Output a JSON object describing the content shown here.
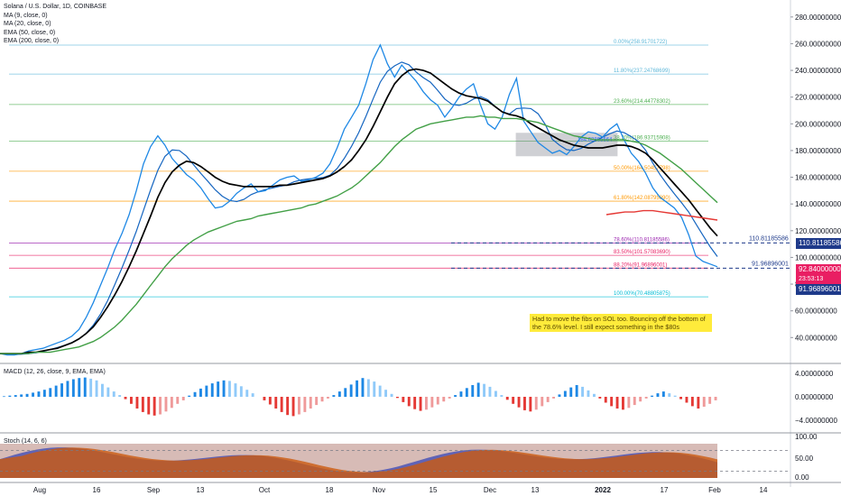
{
  "header": {
    "symbol_line": "Solana / U.S. Dollar, 1D, COINBASE",
    "indicators": [
      "MA (9, close, 0)",
      "MA (20, close, 0)",
      "EMA (50, close, 0)",
      "EMA (200, close, 0)"
    ]
  },
  "price_axis": {
    "ticks": [
      "280.00000000",
      "260.00000000",
      "240.00000000",
      "220.00000000",
      "200.00000000",
      "180.00000000",
      "160.00000000",
      "140.00000000",
      "120.00000000",
      "100.00000000",
      "80.00000000",
      "60.00000000",
      "40.00000000"
    ],
    "ylim": [
      24,
      290
    ]
  },
  "labels": {
    "level_high": "110.81185586",
    "level_low": "91.96896001",
    "last_price": "92.84000000",
    "countdown": "23:53:13"
  },
  "note": "Had to move the fibs on SOL too. Bouncing off the bottom of the 78.6% level. I still expect something in the $80s",
  "fib_levels": [
    {
      "label": "0.00%(258.91701722)",
      "value": 258.92,
      "color": "#5fb8d9"
    },
    {
      "label": "11.80%(237.24768699)",
      "value": 237.25,
      "color": "#5fb8d9"
    },
    {
      "label": "23.60%(214.44778302)",
      "value": 214.45,
      "color": "#4caf50"
    },
    {
      "label": "38.20%(186.93715908)",
      "value": 186.94,
      "color": "#4caf50"
    },
    {
      "label": "50.00%(164.50457798)",
      "value": 164.5,
      "color": "#ff9800"
    },
    {
      "label": "61.80%(142.08795690)",
      "value": 142.09,
      "color": "#ff9800"
    },
    {
      "label": "78.60%(110.81185586)",
      "value": 110.81,
      "color": "#9c27b0"
    },
    {
      "label": "83.50%(101.57083690)",
      "value": 101.57,
      "color": "#e91e63"
    },
    {
      "label": "88.20%(91.96896001)",
      "value": 91.97,
      "color": "#e91e63"
    },
    {
      "label": "100.00%(70.48805875)",
      "value": 70.49,
      "color": "#00bcd4"
    }
  ],
  "box_label": "184.62806664",
  "macd": {
    "title": "MACD (12, 26, close, 9, EMA, EMA)",
    "ticks": [
      "4.00000000",
      "0.00000000",
      "−4.00000000"
    ],
    "hist": [
      0.1,
      0.2,
      0.3,
      0.4,
      0.5,
      0.7,
      0.9,
      1.2,
      1.5,
      1.9,
      2.3,
      2.7,
      3.0,
      3.2,
      3.3,
      3.1,
      2.8,
      2.2,
      1.6,
      0.9,
      0.3,
      -0.4,
      -1.2,
      -2.0,
      -2.6,
      -3.0,
      -3.2,
      -3.0,
      -2.5,
      -1.9,
      -1.2,
      -0.6,
      0.2,
      0.8,
      1.4,
      1.9,
      2.3,
      2.6,
      2.8,
      2.7,
      2.3,
      1.8,
      1.2,
      0.6,
      0.0,
      -0.6,
      -1.3,
      -2.0,
      -2.6,
      -3.1,
      -3.3,
      -3.0,
      -2.6,
      -2.0,
      -1.4,
      -0.8,
      -0.3,
      0.3,
      0.9,
      1.5,
      2.1,
      2.8,
      3.2,
      3.0,
      2.6,
      1.9,
      1.2,
      0.5,
      -0.2,
      -0.9,
      -1.6,
      -2.1,
      -2.4,
      -2.2,
      -1.8,
      -1.3,
      -0.8,
      -0.3,
      0.3,
      0.9,
      1.5,
      2.0,
      2.4,
      2.2,
      1.7,
      1.0,
      0.3,
      -0.5,
      -1.2,
      -1.8,
      -2.3,
      -2.5,
      -2.2,
      -1.6,
      -0.9,
      -0.3,
      0.4,
      1.0,
      1.6,
      2.0,
      1.7,
      1.1,
      0.5,
      -0.3,
      -1.0,
      -1.6,
      -2.0,
      -2.2,
      -1.9,
      -1.4,
      -0.8,
      -0.3,
      0.2,
      0.6,
      0.9,
      0.6,
      0.2,
      -0.4,
      -1.0,
      -1.6,
      -2.0,
      -1.7,
      -1.2,
      -0.6
    ]
  },
  "stoch": {
    "title": "Stoch (14, 6, 6)",
    "ticks": [
      "100.00",
      "50.00",
      "0.00"
    ]
  },
  "time_axis": [
    "Aug",
    "16",
    "Sep",
    "13",
    "Oct",
    "18",
    "Nov",
    "15",
    "Dec",
    "13",
    "2022",
    "17",
    "Feb",
    "14"
  ],
  "chart_data": {
    "type": "line",
    "series": [
      {
        "values": [
          28,
          27,
          27,
          28,
          30,
          31,
          32,
          34,
          36,
          38,
          41,
          46,
          55,
          66,
          79,
          92,
          106,
          118,
          132,
          150,
          170,
          183,
          191,
          184,
          174,
          168,
          162,
          158,
          152,
          144,
          137,
          138,
          142,
          148,
          152,
          155,
          149,
          150,
          154,
          158,
          160,
          161,
          157,
          158,
          160,
          163,
          170,
          182,
          196,
          205,
          214,
          230,
          248,
          259,
          245,
          235,
          244,
          238,
          232,
          224,
          218,
          214,
          205,
          212,
          220,
          226,
          230,
          214,
          200,
          196,
          205,
          222,
          234,
          202,
          194,
          186,
          182,
          178,
          180,
          177,
          183,
          190,
          194,
          193,
          190,
          196,
          200,
          188,
          178,
          172,
          163,
          152,
          145,
          141,
          137,
          130,
          117,
          101,
          97,
          95,
          93
        ]
      },
      {
        "values": [
          28,
          28,
          28,
          28,
          29,
          29,
          30,
          31,
          32,
          34,
          36,
          39,
          43,
          48,
          55,
          63,
          72,
          82,
          93,
          105,
          118,
          131,
          145,
          156,
          164,
          169,
          172,
          171,
          168,
          164,
          160,
          157,
          155,
          154,
          153,
          153,
          153,
          153,
          153,
          154,
          154,
          155,
          156,
          157,
          158,
          159,
          161,
          164,
          168,
          173,
          180,
          188,
          198,
          209,
          220,
          230,
          236,
          240,
          241,
          240,
          238,
          234,
          230,
          226,
          223,
          221,
          220,
          219,
          217,
          213,
          209,
          207,
          206,
          204,
          200,
          197,
          194,
          191,
          188,
          186,
          184,
          183,
          182,
          182,
          182,
          183,
          184,
          184,
          183,
          181,
          178,
          173,
          167,
          161,
          155,
          149,
          143,
          136,
          129,
          122,
          116
        ]
      },
      {
        "values": [
          28,
          28,
          28,
          28,
          28,
          29,
          29,
          29,
          30,
          31,
          32,
          33,
          35,
          37,
          40,
          44,
          48,
          53,
          59,
          65,
          72,
          79,
          86,
          93,
          99,
          104,
          109,
          113,
          116,
          119,
          121,
          123,
          125,
          127,
          128,
          129,
          131,
          132,
          133,
          134,
          135,
          136,
          137,
          139,
          140,
          142,
          144,
          146,
          149,
          152,
          156,
          161,
          166,
          171,
          177,
          183,
          188,
          192,
          196,
          198,
          200,
          201,
          202,
          203,
          204,
          205,
          205,
          206,
          205,
          205,
          204,
          204,
          204,
          203,
          202,
          201,
          199,
          197,
          195,
          193,
          191,
          190,
          189,
          188,
          188,
          188,
          188,
          188,
          187,
          186,
          184,
          181,
          178,
          174,
          170,
          166,
          161,
          156,
          151,
          146,
          141
        ]
      },
      {
        "values": [
          132,
          133,
          134,
          134,
          135,
          135,
          134,
          133,
          132,
          131,
          130,
          129,
          128
        ]
      }
    ]
  }
}
